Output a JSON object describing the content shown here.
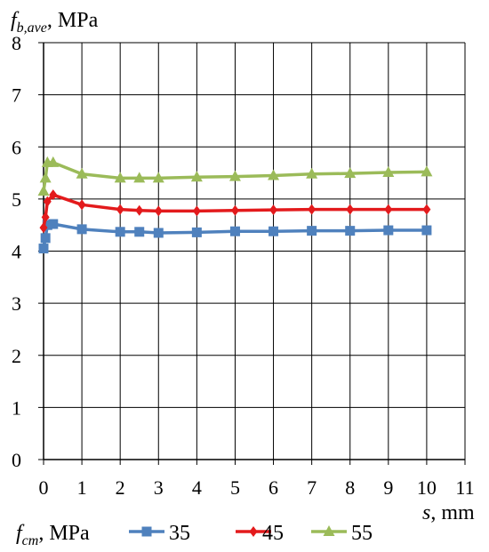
{
  "chart_data": {
    "type": "line",
    "title": "",
    "ylabel": {
      "main": "f",
      "sub": "b,ave",
      "unit": ", MPa"
    },
    "xlabel": {
      "main": "s",
      "unit": ", mm"
    },
    "xlim": [
      0,
      11
    ],
    "ylim": [
      0,
      8
    ],
    "xticks": [
      0,
      1,
      2,
      3,
      4,
      5,
      6,
      7,
      8,
      9,
      10,
      11
    ],
    "yticks": [
      0,
      1,
      2,
      3,
      4,
      5,
      6,
      7,
      8
    ],
    "grid": true,
    "legend": {
      "placement": "bottom",
      "title": {
        "main": "f",
        "sub": "cm",
        "unit": ", MPa"
      }
    },
    "x": [
      0,
      0.05,
      0.1,
      0.25,
      1,
      2,
      2.5,
      3,
      4,
      5,
      6,
      7,
      8,
      9,
      10
    ],
    "series": [
      {
        "name": "35",
        "color": "#4f81bd",
        "marker": "square",
        "values": [
          4.05,
          4.25,
          4.5,
          4.52,
          4.42,
          4.37,
          4.37,
          4.35,
          4.36,
          4.38,
          4.38,
          4.39,
          4.39,
          4.4,
          4.4
        ]
      },
      {
        "name": "45",
        "color": "#e31a1c",
        "marker": "diamond",
        "values": [
          4.45,
          4.65,
          4.95,
          5.08,
          4.89,
          4.8,
          4.78,
          4.77,
          4.77,
          4.78,
          4.79,
          4.8,
          4.8,
          4.8,
          4.8
        ]
      },
      {
        "name": "55",
        "color": "#9bbb59",
        "marker": "triangle",
        "values": [
          5.15,
          5.4,
          5.7,
          5.7,
          5.48,
          5.4,
          5.4,
          5.4,
          5.42,
          5.43,
          5.45,
          5.48,
          5.49,
          5.51,
          5.52
        ]
      }
    ]
  }
}
